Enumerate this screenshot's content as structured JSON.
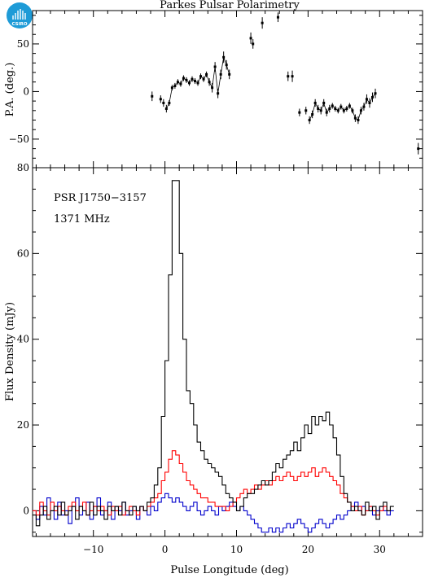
{
  "title": "Parkes Pulsar Polarimetry",
  "logo": {
    "text": "CSIRO",
    "color": "#1E9BD7"
  },
  "top_panel": {
    "ylabel": "P.A. (deg.)",
    "ylim": [
      -80,
      85
    ],
    "yticks": [
      -50,
      0,
      50
    ],
    "ytick_labels": [
      "−50",
      "0",
      "50"
    ]
  },
  "bottom_panel": {
    "ylabel": "Flux Density (mJy)",
    "xlabel": "Pulse Longitude (deg)",
    "ylim": [
      -6,
      80
    ],
    "yticks": [
      0,
      20,
      40,
      60,
      80
    ],
    "ytick_labels": [
      "0",
      "20",
      "40",
      "60",
      "80"
    ],
    "annotation_lines": [
      "PSR J1750−3157",
      "1371 MHz"
    ]
  },
  "xaxis": {
    "xlim": [
      -18.5,
      36
    ],
    "xticks": [
      -10,
      0,
      10,
      20,
      30
    ],
    "xtick_labels": [
      "−10",
      "0",
      "10",
      "20",
      "30"
    ]
  },
  "colors": {
    "total": "#000000",
    "linear": "#ff0000",
    "circular": "#0000cc"
  },
  "chart_data": [
    {
      "type": "scatter",
      "title": "Parkes Pulsar Polarimetry",
      "ylabel": "P.A. (deg.)",
      "xlim": [
        -18.5,
        36
      ],
      "ylim": [
        -80,
        85
      ],
      "series": [
        {
          "points": [
            [
              -1.8,
              -5,
              5
            ],
            [
              -0.6,
              -8,
              4
            ],
            [
              -0.2,
              -12,
              4
            ],
            [
              0.2,
              -18,
              4
            ],
            [
              0.6,
              -12,
              3
            ],
            [
              1.0,
              4,
              3
            ],
            [
              1.4,
              6,
              3
            ],
            [
              1.8,
              10,
              3
            ],
            [
              2.2,
              8,
              3
            ],
            [
              2.6,
              14,
              3
            ],
            [
              3.0,
              12,
              3
            ],
            [
              3.4,
              9,
              3
            ],
            [
              3.8,
              13,
              3
            ],
            [
              4.2,
              11,
              3
            ],
            [
              4.6,
              9,
              3
            ],
            [
              5.0,
              16,
              3
            ],
            [
              5.4,
              13,
              3
            ],
            [
              5.8,
              18,
              3
            ],
            [
              6.2,
              10,
              4
            ],
            [
              6.6,
              4,
              5
            ],
            [
              7.0,
              26,
              5
            ],
            [
              7.4,
              -2,
              5
            ],
            [
              7.8,
              18,
              5
            ],
            [
              8.2,
              36,
              6
            ],
            [
              8.6,
              28,
              5
            ],
            [
              9.0,
              18,
              5
            ],
            [
              12.0,
              56,
              6
            ],
            [
              12.3,
              50,
              5
            ],
            [
              13.6,
              72,
              6
            ],
            [
              15.8,
              78,
              5
            ],
            [
              17.2,
              16,
              5
            ],
            [
              17.8,
              16,
              6
            ],
            [
              18.8,
              -22,
              4
            ],
            [
              19.7,
              -20,
              4
            ],
            [
              20.2,
              -30,
              4
            ],
            [
              20.6,
              -24,
              4
            ],
            [
              21.0,
              -12,
              4
            ],
            [
              21.4,
              -18,
              4
            ],
            [
              21.8,
              -20,
              4
            ],
            [
              22.2,
              -12,
              4
            ],
            [
              22.6,
              -22,
              4
            ],
            [
              23.0,
              -18,
              4
            ],
            [
              23.4,
              -15,
              3
            ],
            [
              23.8,
              -18,
              3
            ],
            [
              24.2,
              -20,
              3
            ],
            [
              24.6,
              -16,
              3
            ],
            [
              25.0,
              -20,
              3
            ],
            [
              25.4,
              -18,
              3
            ],
            [
              25.8,
              -15,
              3
            ],
            [
              26.2,
              -20,
              3
            ],
            [
              26.6,
              -28,
              4
            ],
            [
              27.0,
              -30,
              4
            ],
            [
              27.4,
              -20,
              4
            ],
            [
              27.8,
              -16,
              4
            ],
            [
              28.2,
              -8,
              5
            ],
            [
              28.6,
              -12,
              5
            ],
            [
              29.0,
              -6,
              5
            ],
            [
              29.4,
              -2,
              5
            ],
            [
              35.4,
              -60,
              6
            ]
          ]
        }
      ]
    },
    {
      "type": "line",
      "xlabel": "Pulse Longitude (deg)",
      "ylabel": "Flux Density (mJy)",
      "xlim": [
        -18.5,
        36
      ],
      "ylim": [
        -6,
        80
      ],
      "x_start": -18.5,
      "x_step": 0.5,
      "series": [
        {
          "name": "total",
          "values": [
            -1,
            -3.5,
            -1,
            1,
            -2,
            0,
            1,
            -1,
            2,
            -1,
            0,
            1,
            -2,
            1,
            0,
            -1,
            2,
            -1,
            1,
            0,
            -2,
            1,
            0,
            1,
            -1,
            2,
            0,
            -1,
            1,
            0,
            1,
            0,
            2,
            3,
            6,
            10,
            22,
            35,
            55,
            77,
            77,
            60,
            40,
            28,
            25,
            20,
            16,
            14,
            12,
            11,
            10,
            9,
            8,
            6,
            4,
            3,
            2,
            0,
            1,
            3,
            4,
            4,
            5,
            6,
            7,
            6,
            7,
            9,
            11,
            10,
            12,
            13,
            14,
            16,
            14,
            17,
            20,
            18,
            22,
            20,
            22,
            21,
            23,
            20,
            17,
            13,
            8,
            4,
            2,
            0,
            1,
            0,
            -1,
            2,
            0,
            1,
            -2,
            1,
            2,
            0,
            1
          ],
          "color": "#000000"
        },
        {
          "name": "linear",
          "values": [
            0,
            -1,
            2,
            0,
            -1,
            2,
            0,
            1,
            0,
            -1,
            1,
            2,
            0,
            1,
            2,
            -1,
            0,
            1,
            0,
            1,
            0,
            -1,
            1,
            0,
            1,
            -1,
            0,
            1,
            0,
            -1,
            1,
            0,
            1,
            2,
            3,
            4,
            7,
            9,
            12,
            14,
            13,
            11,
            9,
            7,
            6,
            5,
            4,
            3,
            3,
            2,
            2,
            1,
            1,
            1,
            0,
            1,
            2,
            3,
            4,
            5,
            4,
            5,
            6,
            5,
            6,
            7,
            6,
            7,
            8,
            7,
            8,
            9,
            8,
            7,
            8,
            9,
            8,
            9,
            10,
            8,
            9,
            10,
            9,
            8,
            7,
            6,
            4,
            3,
            2,
            1,
            0,
            1,
            -1,
            0,
            1,
            0,
            -1,
            0,
            1,
            0
          ],
          "color": "#ff0000"
        },
        {
          "name": "circular",
          "values": [
            0,
            -2,
            1,
            -1,
            3,
            0,
            -2,
            2,
            -1,
            0,
            -3,
            1,
            3,
            -1,
            0,
            2,
            -2,
            1,
            3,
            -1,
            0,
            2,
            -2,
            1,
            0,
            2,
            -1,
            0,
            1,
            -2,
            1,
            0,
            -1,
            1,
            0,
            2,
            3,
            4,
            3,
            2,
            3,
            2,
            1,
            0,
            1,
            2,
            0,
            -1,
            0,
            1,
            0,
            -1,
            1,
            0,
            1,
            2,
            1,
            0,
            1,
            0,
            -1,
            -2,
            -3,
            -4,
            -5,
            -5,
            -4,
            -5,
            -4,
            -5,
            -4,
            -3,
            -4,
            -3,
            -2,
            -3,
            -4,
            -5,
            -4,
            -3,
            -2,
            -3,
            -4,
            -3,
            -2,
            -1,
            -2,
            -1,
            0,
            1,
            2,
            0,
            1,
            0,
            1,
            -1,
            0,
            1,
            0,
            -1,
            0
          ],
          "color": "#0000cc"
        }
      ]
    }
  ]
}
